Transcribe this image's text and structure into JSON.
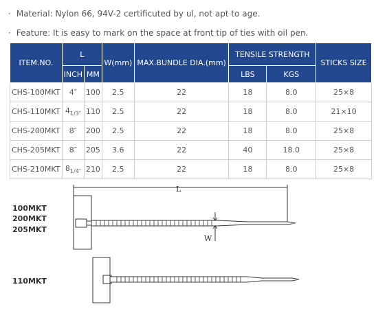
{
  "notes": [
    "Material: Nylon 66, 94V-2 certificuted by ul, not apt to age.",
    "Feature: It is easy to mark on the space at front tip of ties with oil pen."
  ],
  "table": {
    "header": {
      "item": "ITEM.NO.",
      "l": "L",
      "inch": "INCH",
      "mm": "MM",
      "w": "W(mm)",
      "bundle": "MAX.BUNDLE DIA.(mm)",
      "tensile": "TENSILE STRENGTH",
      "lbs": "LBS",
      "kgs": "KGS",
      "sticks": "STICKS SIZE"
    },
    "rows": [
      [
        "CHS-100MKT",
        {
          "main": "4″"
        },
        "100",
        "2.5",
        "22",
        "18",
        "8.0",
        "25×8"
      ],
      [
        "CHS-110MKT",
        {
          "main": "4",
          "sub": "1/3″"
        },
        "110",
        "2.5",
        "22",
        "18",
        "8.0",
        "21×10"
      ],
      [
        "CHS-200MKT",
        {
          "main": "8″"
        },
        "200",
        "2.5",
        "22",
        "18",
        "8.0",
        "25×8"
      ],
      [
        "CHS-205MKT",
        {
          "main": "8″"
        },
        "205",
        "3.6",
        "22",
        "40",
        "18.0",
        "25×8"
      ],
      [
        "CHS-210MKT",
        {
          "main": "8",
          "sub": "1/4″"
        },
        "210",
        "2.5",
        "22",
        "18",
        "8.0",
        "25×8"
      ]
    ]
  },
  "diagram": {
    "length_label": "L",
    "width_label": "W",
    "models_a": [
      "100MKT",
      "200MKT",
      "205MKT"
    ],
    "model_b": "110MKT"
  }
}
